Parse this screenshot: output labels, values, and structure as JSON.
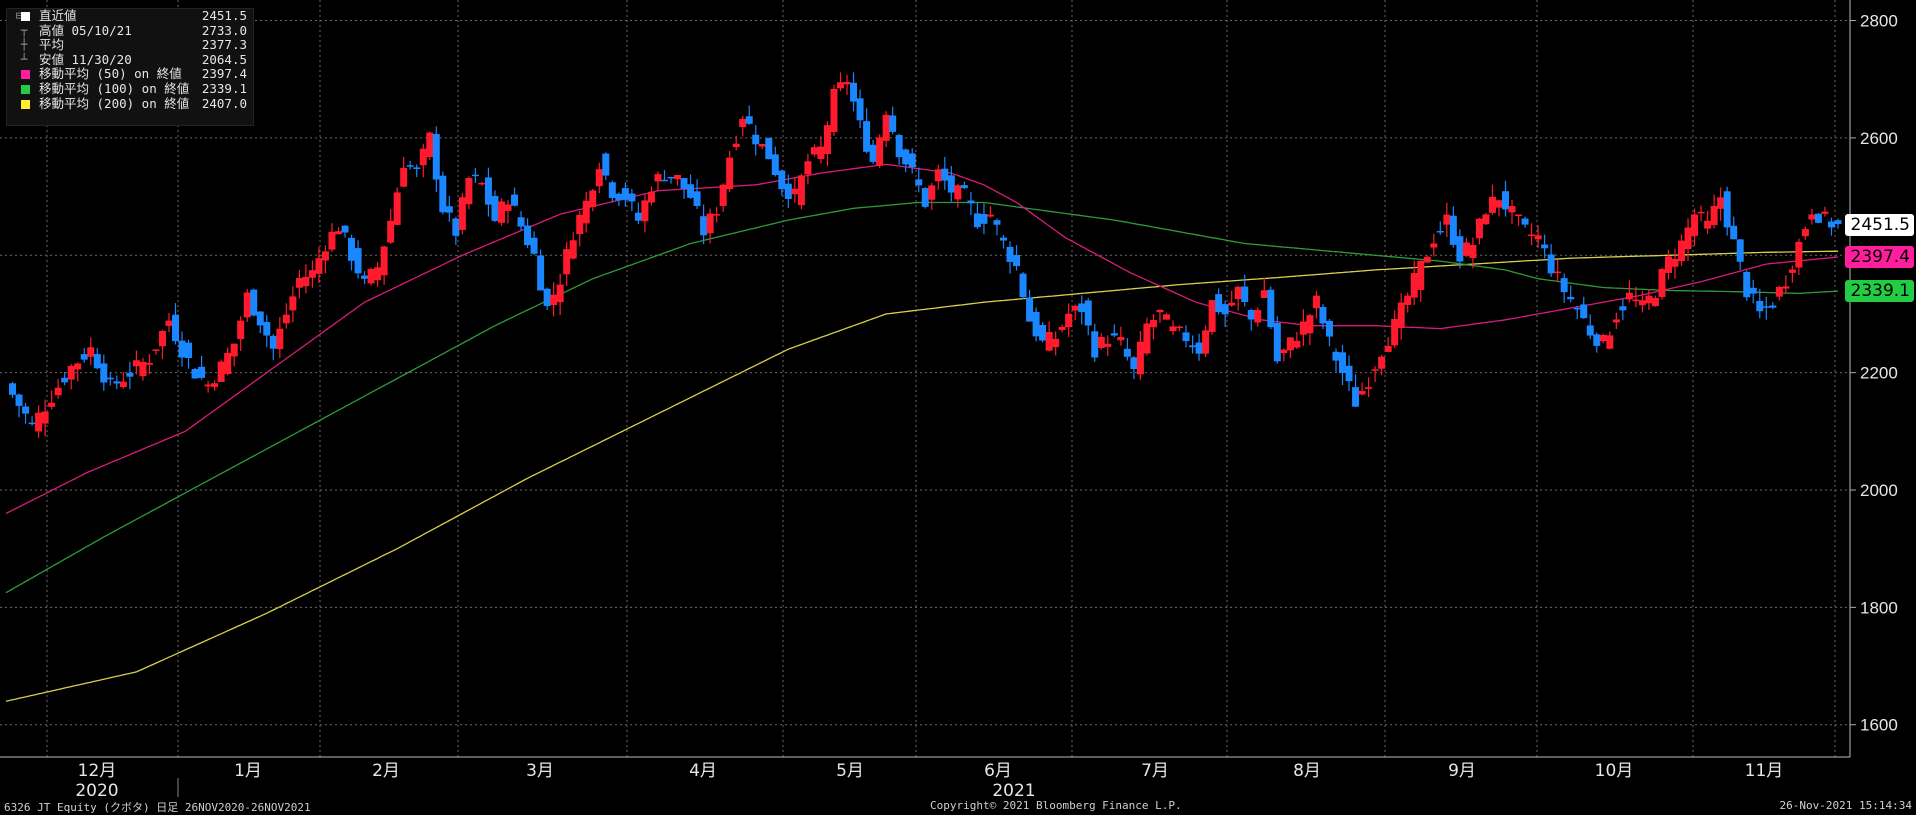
{
  "chart_data": {
    "type": "candlestick",
    "ticker_line": "6326 JT Equity (クボタ)  日足 26NOV2020-26NOV2021",
    "copyright": "Copyright© 2021 Bloomberg Finance L.P.",
    "timestamp": "26-Nov-2021 15:14:34",
    "y_axis": {
      "ticks": [
        1600,
        1800,
        2000,
        2200,
        2400,
        2600,
        2800
      ],
      "ylim": [
        1545,
        2835
      ],
      "side": "right",
      "grid": true
    },
    "x_axis": {
      "months": [
        "12月",
        "1月",
        "2月",
        "3月",
        "4月",
        "5月",
        "6月",
        "7月",
        "8月",
        "9月",
        "10月",
        "11月"
      ],
      "years": [
        "2020",
        "2021"
      ]
    },
    "legend": [
      {
        "symbol": "square-white",
        "label": "直近値",
        "value": "2451.5",
        "color": "#ffffff"
      },
      {
        "symbol": "high",
        "label": "高値 05/10/21",
        "value": "2733.0",
        "color": "#9a9a9a"
      },
      {
        "symbol": "avg",
        "label": "平均",
        "value": "2377.3",
        "color": "#9a9a9a"
      },
      {
        "symbol": "low",
        "label": "安値 11/30/20",
        "value": "2064.5",
        "color": "#9a9a9a"
      },
      {
        "symbol": "square",
        "label": "移動平均 (50) on 終値",
        "value": "2397.4",
        "color": "#ff1f9e"
      },
      {
        "symbol": "square",
        "label": "移動平均 (100) on 終値",
        "value": "2339.1",
        "color": "#22cc44"
      },
      {
        "symbol": "square",
        "label": "移動平均 (200) on 終値",
        "value": "2407.0",
        "color": "#ffee33"
      }
    ],
    "value_tags": [
      {
        "text": "2451.5",
        "value": 2451.5,
        "bg": "#ffffff",
        "fg": "#000000"
      },
      {
        "text": "2397.4",
        "value": 2397.4,
        "bg": "#ff1f9e",
        "fg": "#000000"
      },
      {
        "text": "2339.1",
        "value": 2339.1,
        "bg": "#22cc44",
        "fg": "#000000"
      }
    ],
    "colors": {
      "up": "#ff1b2d",
      "down": "#1a86ff",
      "ma50": "#d81b7a",
      "ma100": "#2e9a3a",
      "ma200": "#d9cf4a",
      "grid": "#6a6a6a"
    },
    "close_path": [
      [
        0,
        2180
      ],
      [
        8,
        2110
      ],
      [
        14,
        2160
      ],
      [
        20,
        2210
      ],
      [
        26,
        2240
      ],
      [
        32,
        2175
      ],
      [
        38,
        2200
      ],
      [
        44,
        2225
      ],
      [
        50,
        2290
      ],
      [
        54,
        2240
      ],
      [
        58,
        2200
      ],
      [
        62,
        2180
      ],
      [
        66,
        2210
      ],
      [
        70,
        2250
      ],
      [
        74,
        2330
      ],
      [
        78,
        2290
      ],
      [
        82,
        2240
      ],
      [
        86,
        2300
      ],
      [
        90,
        2360
      ],
      [
        94,
        2370
      ],
      [
        98,
        2420
      ],
      [
        102,
        2450
      ],
      [
        106,
        2400
      ],
      [
        110,
        2350
      ],
      [
        114,
        2380
      ],
      [
        118,
        2460
      ],
      [
        122,
        2560
      ],
      [
        126,
        2540
      ],
      [
        130,
        2600
      ],
      [
        134,
        2480
      ],
      [
        138,
        2440
      ],
      [
        142,
        2530
      ],
      [
        146,
        2520
      ],
      [
        150,
        2460
      ],
      [
        154,
        2500
      ],
      [
        158,
        2450
      ],
      [
        162,
        2400
      ],
      [
        166,
        2310
      ],
      [
        170,
        2360
      ],
      [
        174,
        2440
      ],
      [
        178,
        2490
      ],
      [
        182,
        2560
      ],
      [
        186,
        2510
      ],
      [
        190,
        2500
      ],
      [
        194,
        2460
      ],
      [
        198,
        2520
      ],
      [
        202,
        2540
      ],
      [
        206,
        2530
      ],
      [
        210,
        2500
      ],
      [
        214,
        2440
      ],
      [
        218,
        2480
      ],
      [
        222,
        2570
      ],
      [
        226,
        2640
      ],
      [
        230,
        2600
      ],
      [
        234,
        2570
      ],
      [
        238,
        2520
      ],
      [
        242,
        2500
      ],
      [
        246,
        2560
      ],
      [
        250,
        2580
      ],
      [
        254,
        2670
      ],
      [
        258,
        2700
      ],
      [
        262,
        2620
      ],
      [
        266,
        2560
      ],
      [
        270,
        2650
      ],
      [
        274,
        2580
      ],
      [
        278,
        2540
      ],
      [
        282,
        2490
      ],
      [
        286,
        2540
      ],
      [
        290,
        2510
      ],
      [
        294,
        2500
      ],
      [
        298,
        2460
      ],
      [
        302,
        2470
      ],
      [
        306,
        2420
      ],
      [
        310,
        2380
      ],
      [
        314,
        2290
      ],
      [
        318,
        2250
      ],
      [
        322,
        2260
      ],
      [
        326,
        2300
      ],
      [
        330,
        2310
      ],
      [
        334,
        2240
      ],
      [
        338,
        2260
      ],
      [
        342,
        2250
      ],
      [
        346,
        2200
      ],
      [
        350,
        2280
      ],
      [
        354,
        2300
      ],
      [
        358,
        2270
      ],
      [
        362,
        2260
      ],
      [
        366,
        2240
      ],
      [
        370,
        2320
      ],
      [
        374,
        2300
      ],
      [
        378,
        2340
      ],
      [
        382,
        2290
      ],
      [
        386,
        2340
      ],
      [
        390,
        2220
      ],
      [
        394,
        2250
      ],
      [
        398,
        2280
      ],
      [
        402,
        2320
      ],
      [
        406,
        2250
      ],
      [
        410,
        2200
      ],
      [
        414,
        2150
      ],
      [
        418,
        2190
      ],
      [
        422,
        2240
      ],
      [
        426,
        2280
      ],
      [
        430,
        2330
      ],
      [
        434,
        2380
      ],
      [
        438,
        2430
      ],
      [
        442,
        2460
      ],
      [
        446,
        2400
      ],
      [
        450,
        2420
      ],
      [
        454,
        2480
      ],
      [
        458,
        2500
      ],
      [
        462,
        2470
      ],
      [
        466,
        2440
      ],
      [
        470,
        2430
      ],
      [
        474,
        2380
      ],
      [
        478,
        2340
      ],
      [
        482,
        2310
      ],
      [
        486,
        2270
      ],
      [
        490,
        2250
      ],
      [
        494,
        2300
      ],
      [
        498,
        2330
      ],
      [
        502,
        2310
      ],
      [
        506,
        2340
      ],
      [
        510,
        2390
      ],
      [
        514,
        2420
      ],
      [
        518,
        2470
      ],
      [
        522,
        2450
      ],
      [
        526,
        2500
      ],
      [
        530,
        2420
      ],
      [
        534,
        2340
      ],
      [
        538,
        2300
      ],
      [
        542,
        2320
      ],
      [
        546,
        2360
      ],
      [
        550,
        2420
      ],
      [
        554,
        2480
      ],
      [
        558,
        2460
      ],
      [
        562,
        2450
      ]
    ],
    "ma50": [
      [
        0,
        1960
      ],
      [
        25,
        2030
      ],
      [
        55,
        2100
      ],
      [
        80,
        2200
      ],
      [
        110,
        2320
      ],
      [
        140,
        2400
      ],
      [
        170,
        2470
      ],
      [
        200,
        2510
      ],
      [
        230,
        2520
      ],
      [
        250,
        2540
      ],
      [
        270,
        2555
      ],
      [
        290,
        2540
      ],
      [
        300,
        2520
      ],
      [
        310,
        2490
      ],
      [
        325,
        2430
      ],
      [
        345,
        2370
      ],
      [
        365,
        2320
      ],
      [
        385,
        2290
      ],
      [
        400,
        2280
      ],
      [
        420,
        2280
      ],
      [
        440,
        2275
      ],
      [
        460,
        2290
      ],
      [
        480,
        2310
      ],
      [
        500,
        2330
      ],
      [
        520,
        2355
      ],
      [
        540,
        2385
      ],
      [
        562,
        2397
      ]
    ],
    "ma100": [
      [
        0,
        1825
      ],
      [
        30,
        1920
      ],
      [
        60,
        2010
      ],
      [
        90,
        2100
      ],
      [
        120,
        2190
      ],
      [
        150,
        2280
      ],
      [
        180,
        2360
      ],
      [
        210,
        2420
      ],
      [
        240,
        2460
      ],
      [
        260,
        2480
      ],
      [
        280,
        2490
      ],
      [
        300,
        2490
      ],
      [
        320,
        2475
      ],
      [
        340,
        2460
      ],
      [
        360,
        2440
      ],
      [
        380,
        2420
      ],
      [
        400,
        2410
      ],
      [
        420,
        2400
      ],
      [
        440,
        2390
      ],
      [
        460,
        2375
      ],
      [
        470,
        2360
      ],
      [
        490,
        2345
      ],
      [
        510,
        2340
      ],
      [
        530,
        2338
      ],
      [
        550,
        2335
      ],
      [
        562,
        2339
      ]
    ],
    "ma200": [
      [
        0,
        1640
      ],
      [
        40,
        1690
      ],
      [
        80,
        1790
      ],
      [
        120,
        1900
      ],
      [
        160,
        2020
      ],
      [
        200,
        2130
      ],
      [
        240,
        2240
      ],
      [
        270,
        2300
      ],
      [
        300,
        2320
      ],
      [
        330,
        2335
      ],
      [
        360,
        2350
      ],
      [
        390,
        2362
      ],
      [
        420,
        2375
      ],
      [
        450,
        2385
      ],
      [
        480,
        2395
      ],
      [
        510,
        2400
      ],
      [
        540,
        2405
      ],
      [
        562,
        2407
      ]
    ]
  }
}
